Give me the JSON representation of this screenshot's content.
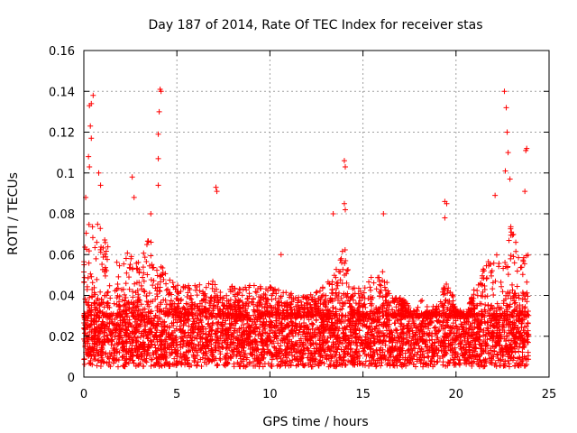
{
  "chart_data": {
    "type": "scatter",
    "title": "Day 187 of 2014, Rate Of TEC Index for receiver stas",
    "xlabel": "GPS time / hours",
    "ylabel": "ROTI / TECUs",
    "xlim": [
      0,
      25
    ],
    "ylim": [
      0,
      0.16
    ],
    "xticks": [
      0,
      5,
      10,
      15,
      20,
      25
    ],
    "xtick_labels": [
      "0",
      "5",
      "10",
      "15",
      "20",
      "25"
    ],
    "yticks": [
      0,
      0.02,
      0.04,
      0.06,
      0.08,
      0.1,
      0.12,
      0.14,
      0.16
    ],
    "ytick_labels": [
      "0",
      "0.02",
      "0.04",
      "0.06",
      "0.08",
      "0.1",
      "0.12",
      "0.14",
      "0.16"
    ],
    "grid": true,
    "marker": "+",
    "marker_color": "#ff0000",
    "data_x_range": [
      0,
      23.9
    ],
    "baseline_range": [
      0.005,
      0.03
    ],
    "peak_points": [
      {
        "x": 0.3,
        "y": 0.133
      },
      {
        "x": 0.4,
        "y": 0.134
      },
      {
        "x": 0.5,
        "y": 0.138
      },
      {
        "x": 0.35,
        "y": 0.123
      },
      {
        "x": 0.4,
        "y": 0.117
      },
      {
        "x": 0.25,
        "y": 0.108
      },
      {
        "x": 0.3,
        "y": 0.103
      },
      {
        "x": 0.8,
        "y": 0.1
      },
      {
        "x": 0.9,
        "y": 0.094
      },
      {
        "x": 0.1,
        "y": 0.088
      },
      {
        "x": 2.6,
        "y": 0.098
      },
      {
        "x": 2.7,
        "y": 0.088
      },
      {
        "x": 3.6,
        "y": 0.08
      },
      {
        "x": 4.1,
        "y": 0.141
      },
      {
        "x": 4.15,
        "y": 0.14
      },
      {
        "x": 4.05,
        "y": 0.13
      },
      {
        "x": 4.0,
        "y": 0.119
      },
      {
        "x": 4.0,
        "y": 0.107
      },
      {
        "x": 4.0,
        "y": 0.094
      },
      {
        "x": 7.1,
        "y": 0.093
      },
      {
        "x": 7.15,
        "y": 0.091
      },
      {
        "x": 10.6,
        "y": 0.06
      },
      {
        "x": 13.4,
        "y": 0.08
      },
      {
        "x": 14.0,
        "y": 0.106
      },
      {
        "x": 14.05,
        "y": 0.103
      },
      {
        "x": 14.0,
        "y": 0.085
      },
      {
        "x": 14.05,
        "y": 0.082
      },
      {
        "x": 16.1,
        "y": 0.08
      },
      {
        "x": 19.4,
        "y": 0.086
      },
      {
        "x": 19.5,
        "y": 0.085
      },
      {
        "x": 19.4,
        "y": 0.078
      },
      {
        "x": 22.6,
        "y": 0.14
      },
      {
        "x": 22.7,
        "y": 0.132
      },
      {
        "x": 22.75,
        "y": 0.12
      },
      {
        "x": 22.8,
        "y": 0.11
      },
      {
        "x": 22.65,
        "y": 0.101
      },
      {
        "x": 22.9,
        "y": 0.097
      },
      {
        "x": 22.1,
        "y": 0.089
      },
      {
        "x": 23.8,
        "y": 0.112
      },
      {
        "x": 23.75,
        "y": 0.111
      },
      {
        "x": 23.7,
        "y": 0.091
      }
    ]
  }
}
